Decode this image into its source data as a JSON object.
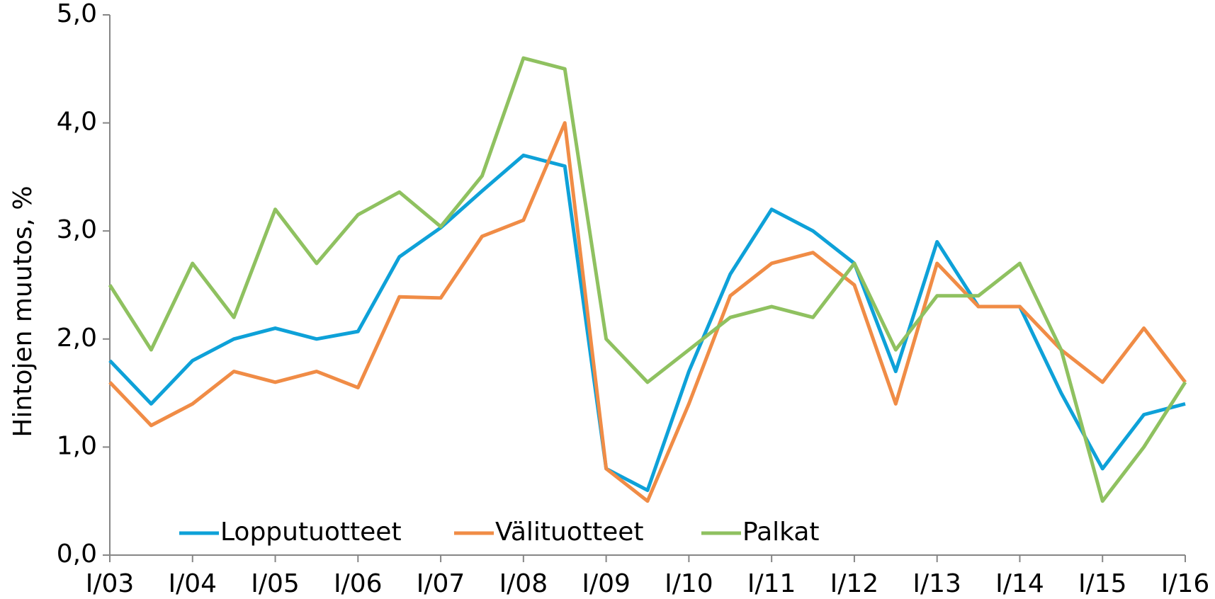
{
  "chart_data": {
    "type": "line",
    "y_label": "Hintojen muutos, %",
    "categories": [
      "I/03",
      null,
      "I/04",
      null,
      "I/05",
      null,
      "I/06",
      null,
      "I/07",
      null,
      "I/08",
      null,
      "I/09",
      null,
      "I/10",
      null,
      "I/11",
      null,
      "I/12",
      null,
      "I/13",
      null,
      "I/14",
      null,
      "I/15",
      null,
      "I/16"
    ],
    "series": [
      {
        "name": "Lopputuotteet",
        "color": "#0ea1d8",
        "values": [
          1.8,
          1.4,
          1.8,
          2.0,
          2.1,
          2.0,
          2.07,
          2.76,
          3.03,
          3.37,
          3.7,
          3.6,
          0.8,
          0.6,
          1.7,
          2.6,
          3.2,
          3.0,
          2.7,
          1.7,
          2.9,
          2.3,
          2.3,
          1.5,
          0.8,
          1.3,
          1.4
        ]
      },
      {
        "name": "Välituotteet",
        "color": "#f08c46",
        "values": [
          1.6,
          1.2,
          1.4,
          1.7,
          1.6,
          1.7,
          1.55,
          2.39,
          2.38,
          2.95,
          3.1,
          4.0,
          0.8,
          0.5,
          1.4,
          2.4,
          2.7,
          2.8,
          2.5,
          1.4,
          2.7,
          2.3,
          2.3,
          1.9,
          1.6,
          2.1,
          1.6
        ]
      },
      {
        "name": "Palkat",
        "color": "#8fc160",
        "values": [
          2.5,
          1.9,
          2.7,
          2.2,
          3.2,
          2.7,
          3.15,
          3.36,
          3.04,
          3.51,
          4.6,
          4.5,
          2.0,
          1.6,
          1.9,
          2.2,
          2.3,
          2.2,
          2.7,
          1.9,
          2.4,
          2.4,
          2.7,
          1.9,
          0.5,
          1.0,
          1.6
        ]
      }
    ],
    "ylim": [
      0,
      5
    ],
    "yticks": [
      {
        "value": 0,
        "label": "0,0"
      },
      {
        "value": 1,
        "label": "1,0"
      },
      {
        "value": 2,
        "label": "2,0"
      },
      {
        "value": 3,
        "label": "3,0"
      },
      {
        "value": 4,
        "label": "4,0"
      },
      {
        "value": 5,
        "label": "5,0"
      }
    ],
    "grid": false,
    "legend": "bottom-left"
  }
}
